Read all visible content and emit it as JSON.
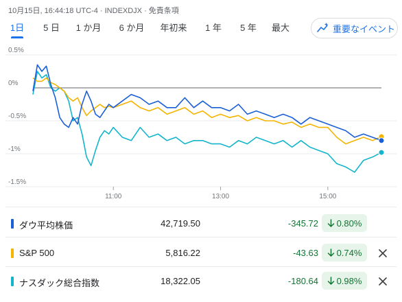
{
  "header": {
    "meta": "10月15日, 16:44:18 UTC-4 · INDEXDJX · 免責条項"
  },
  "ranges": [
    "1日",
    "5 日",
    "1 か月",
    "6 か月",
    "年初来",
    "1 年",
    "5 年",
    "最大"
  ],
  "selected_range": "1日",
  "events_button": {
    "label": "重要なイベント",
    "icon": "spark-timeline-icon"
  },
  "colors": {
    "dow": "#1a5fd6",
    "sp500": "#f4b400",
    "nasdaq": "#12b5cb",
    "positive": "#137333",
    "accent": "#1a73e8"
  },
  "chart_data": {
    "type": "line",
    "y_unit": "%",
    "ylim": [
      -1.5,
      0.5
    ],
    "yticks": [
      "0.5%",
      "0%",
      "-0.5%",
      "-1%",
      "-1.5%"
    ],
    "xticks": [
      "11:00",
      "13:00",
      "15:00"
    ],
    "x_range": [
      "09:30",
      "16:00"
    ],
    "baseline": 0,
    "series": [
      {
        "name": "ダウ平均株価",
        "x": [
          "09:30",
          "09:35",
          "09:40",
          "09:45",
          "09:50",
          "09:55",
          "10:00",
          "10:05",
          "10:10",
          "10:15",
          "10:20",
          "10:25",
          "10:30",
          "10:35",
          "10:40",
          "10:45",
          "10:50",
          "10:55",
          "11:00",
          "11:10",
          "11:20",
          "11:30",
          "11:40",
          "11:50",
          "12:00",
          "12:10",
          "12:20",
          "12:30",
          "12:40",
          "12:50",
          "13:00",
          "13:10",
          "13:20",
          "13:30",
          "13:40",
          "13:50",
          "14:00",
          "14:10",
          "14:20",
          "14:30",
          "14:40",
          "14:50",
          "15:00",
          "15:10",
          "15:20",
          "15:30",
          "15:40",
          "15:50",
          "16:00"
        ],
        "values": [
          -0.05,
          0.35,
          0.25,
          0.33,
          0.05,
          -0.15,
          -0.45,
          -0.55,
          -0.6,
          -0.45,
          -0.55,
          -0.25,
          -0.05,
          -0.2,
          -0.4,
          -0.45,
          -0.35,
          -0.25,
          -0.3,
          -0.2,
          -0.1,
          -0.15,
          -0.25,
          -0.2,
          -0.3,
          -0.3,
          -0.15,
          -0.3,
          -0.2,
          -0.3,
          -0.3,
          -0.35,
          -0.25,
          -0.4,
          -0.35,
          -0.4,
          -0.45,
          -0.4,
          -0.45,
          -0.55,
          -0.45,
          -0.5,
          -0.55,
          -0.6,
          -0.65,
          -0.75,
          -0.7,
          -0.75,
          -0.8
        ]
      },
      {
        "name": "S&P 500",
        "x": [
          "09:30",
          "09:35",
          "09:40",
          "09:45",
          "09:50",
          "09:55",
          "10:00",
          "10:05",
          "10:10",
          "10:15",
          "10:20",
          "10:25",
          "10:30",
          "10:35",
          "10:40",
          "10:45",
          "10:50",
          "10:55",
          "11:00",
          "11:10",
          "11:20",
          "11:30",
          "11:40",
          "11:50",
          "12:00",
          "12:10",
          "12:20",
          "12:30",
          "12:40",
          "12:50",
          "13:00",
          "13:10",
          "13:20",
          "13:30",
          "13:40",
          "13:50",
          "14:00",
          "14:10",
          "14:20",
          "14:30",
          "14:40",
          "14:50",
          "15:00",
          "15:10",
          "15:20",
          "15:30",
          "15:40",
          "15:50",
          "16:00"
        ],
        "values": [
          0.15,
          0.1,
          0.1,
          0.15,
          0.08,
          0.05,
          0.0,
          -0.05,
          -0.15,
          -0.2,
          -0.15,
          -0.3,
          -0.42,
          -0.35,
          -0.3,
          -0.25,
          -0.3,
          -0.28,
          -0.3,
          -0.25,
          -0.2,
          -0.3,
          -0.35,
          -0.3,
          -0.4,
          -0.35,
          -0.3,
          -0.4,
          -0.35,
          -0.45,
          -0.4,
          -0.45,
          -0.42,
          -0.5,
          -0.45,
          -0.5,
          -0.5,
          -0.55,
          -0.52,
          -0.6,
          -0.55,
          -0.6,
          -0.6,
          -0.75,
          -0.85,
          -0.8,
          -0.75,
          -0.8,
          -0.74
        ]
      },
      {
        "name": "ナスダック総合指数",
        "x": [
          "09:30",
          "09:35",
          "09:40",
          "09:45",
          "09:50",
          "09:55",
          "10:00",
          "10:05",
          "10:10",
          "10:15",
          "10:20",
          "10:25",
          "10:30",
          "10:35",
          "10:40",
          "10:45",
          "10:50",
          "10:55",
          "11:00",
          "11:10",
          "11:20",
          "11:30",
          "11:40",
          "11:50",
          "12:00",
          "12:10",
          "12:20",
          "12:30",
          "12:40",
          "12:50",
          "13:00",
          "13:10",
          "13:20",
          "13:30",
          "13:40",
          "13:50",
          "14:00",
          "14:10",
          "14:20",
          "14:30",
          "14:40",
          "14:50",
          "15:00",
          "15:10",
          "15:20",
          "15:30",
          "15:40",
          "15:50",
          "16:00"
        ],
        "values": [
          -0.1,
          0.25,
          0.15,
          0.2,
          0.0,
          -0.05,
          0.0,
          -0.05,
          -0.2,
          -0.5,
          -0.45,
          -0.7,
          -1.05,
          -1.18,
          -0.95,
          -0.75,
          -0.65,
          -0.7,
          -0.6,
          -0.75,
          -0.8,
          -0.6,
          -0.75,
          -0.7,
          -0.8,
          -0.75,
          -0.85,
          -0.8,
          -0.8,
          -0.85,
          -0.85,
          -0.9,
          -0.8,
          -0.85,
          -0.75,
          -0.8,
          -0.85,
          -0.8,
          -0.9,
          -0.8,
          -0.9,
          -0.95,
          -1.0,
          -1.15,
          -1.2,
          -1.28,
          -1.1,
          -1.05,
          -0.98
        ]
      }
    ]
  },
  "rows": [
    {
      "name": "ダウ平均株価",
      "value": "42,719.50",
      "change": "-345.72",
      "pct": "0.80%",
      "removable": false
    },
    {
      "name": "S&P 500",
      "value": "5,816.22",
      "change": "-43.63",
      "pct": "0.74%",
      "removable": true
    },
    {
      "name": "ナスダック総合指数",
      "value": "18,322.05",
      "change": "-180.64",
      "pct": "0.98%",
      "removable": true
    }
  ]
}
